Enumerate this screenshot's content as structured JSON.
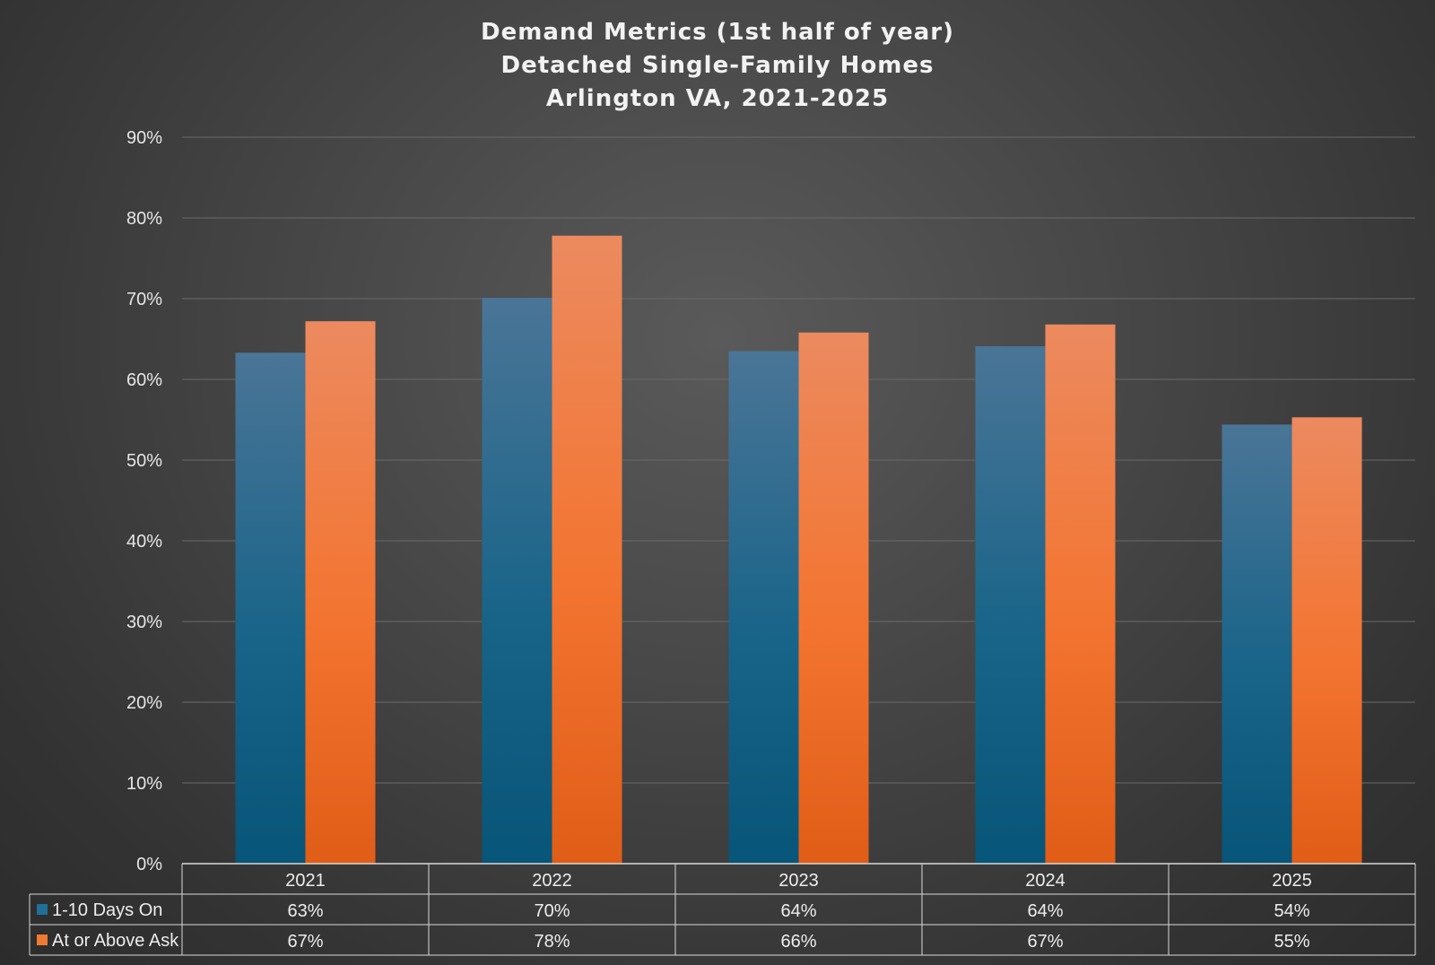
{
  "chart_data": {
    "type": "bar",
    "title": [
      "Demand Metrics (1st half of year)",
      "Detached Single-Family Homes",
      "Arlington VA, 2021-2025"
    ],
    "categories": [
      "2021",
      "2022",
      "2023",
      "2024",
      "2025"
    ],
    "series": [
      {
        "name": "1-10 Days On",
        "values": [
          63.3,
          70.1,
          63.5,
          64.1,
          54.4
        ],
        "labels": [
          "63%",
          "70%",
          "64%",
          "64%",
          "54%"
        ],
        "color": "#1f6f99"
      },
      {
        "name": "At or Above Ask",
        "values": [
          67.2,
          77.8,
          65.8,
          66.8,
          55.3
        ],
        "labels": [
          "67%",
          "78%",
          "66%",
          "67%",
          "55%"
        ],
        "color": "#f07a32"
      }
    ],
    "ylim": [
      0,
      90
    ],
    "yticks": [
      "0%",
      "10%",
      "20%",
      "30%",
      "40%",
      "50%",
      "60%",
      "70%",
      "80%",
      "90%"
    ],
    "grid": true,
    "legend": "data-table"
  }
}
